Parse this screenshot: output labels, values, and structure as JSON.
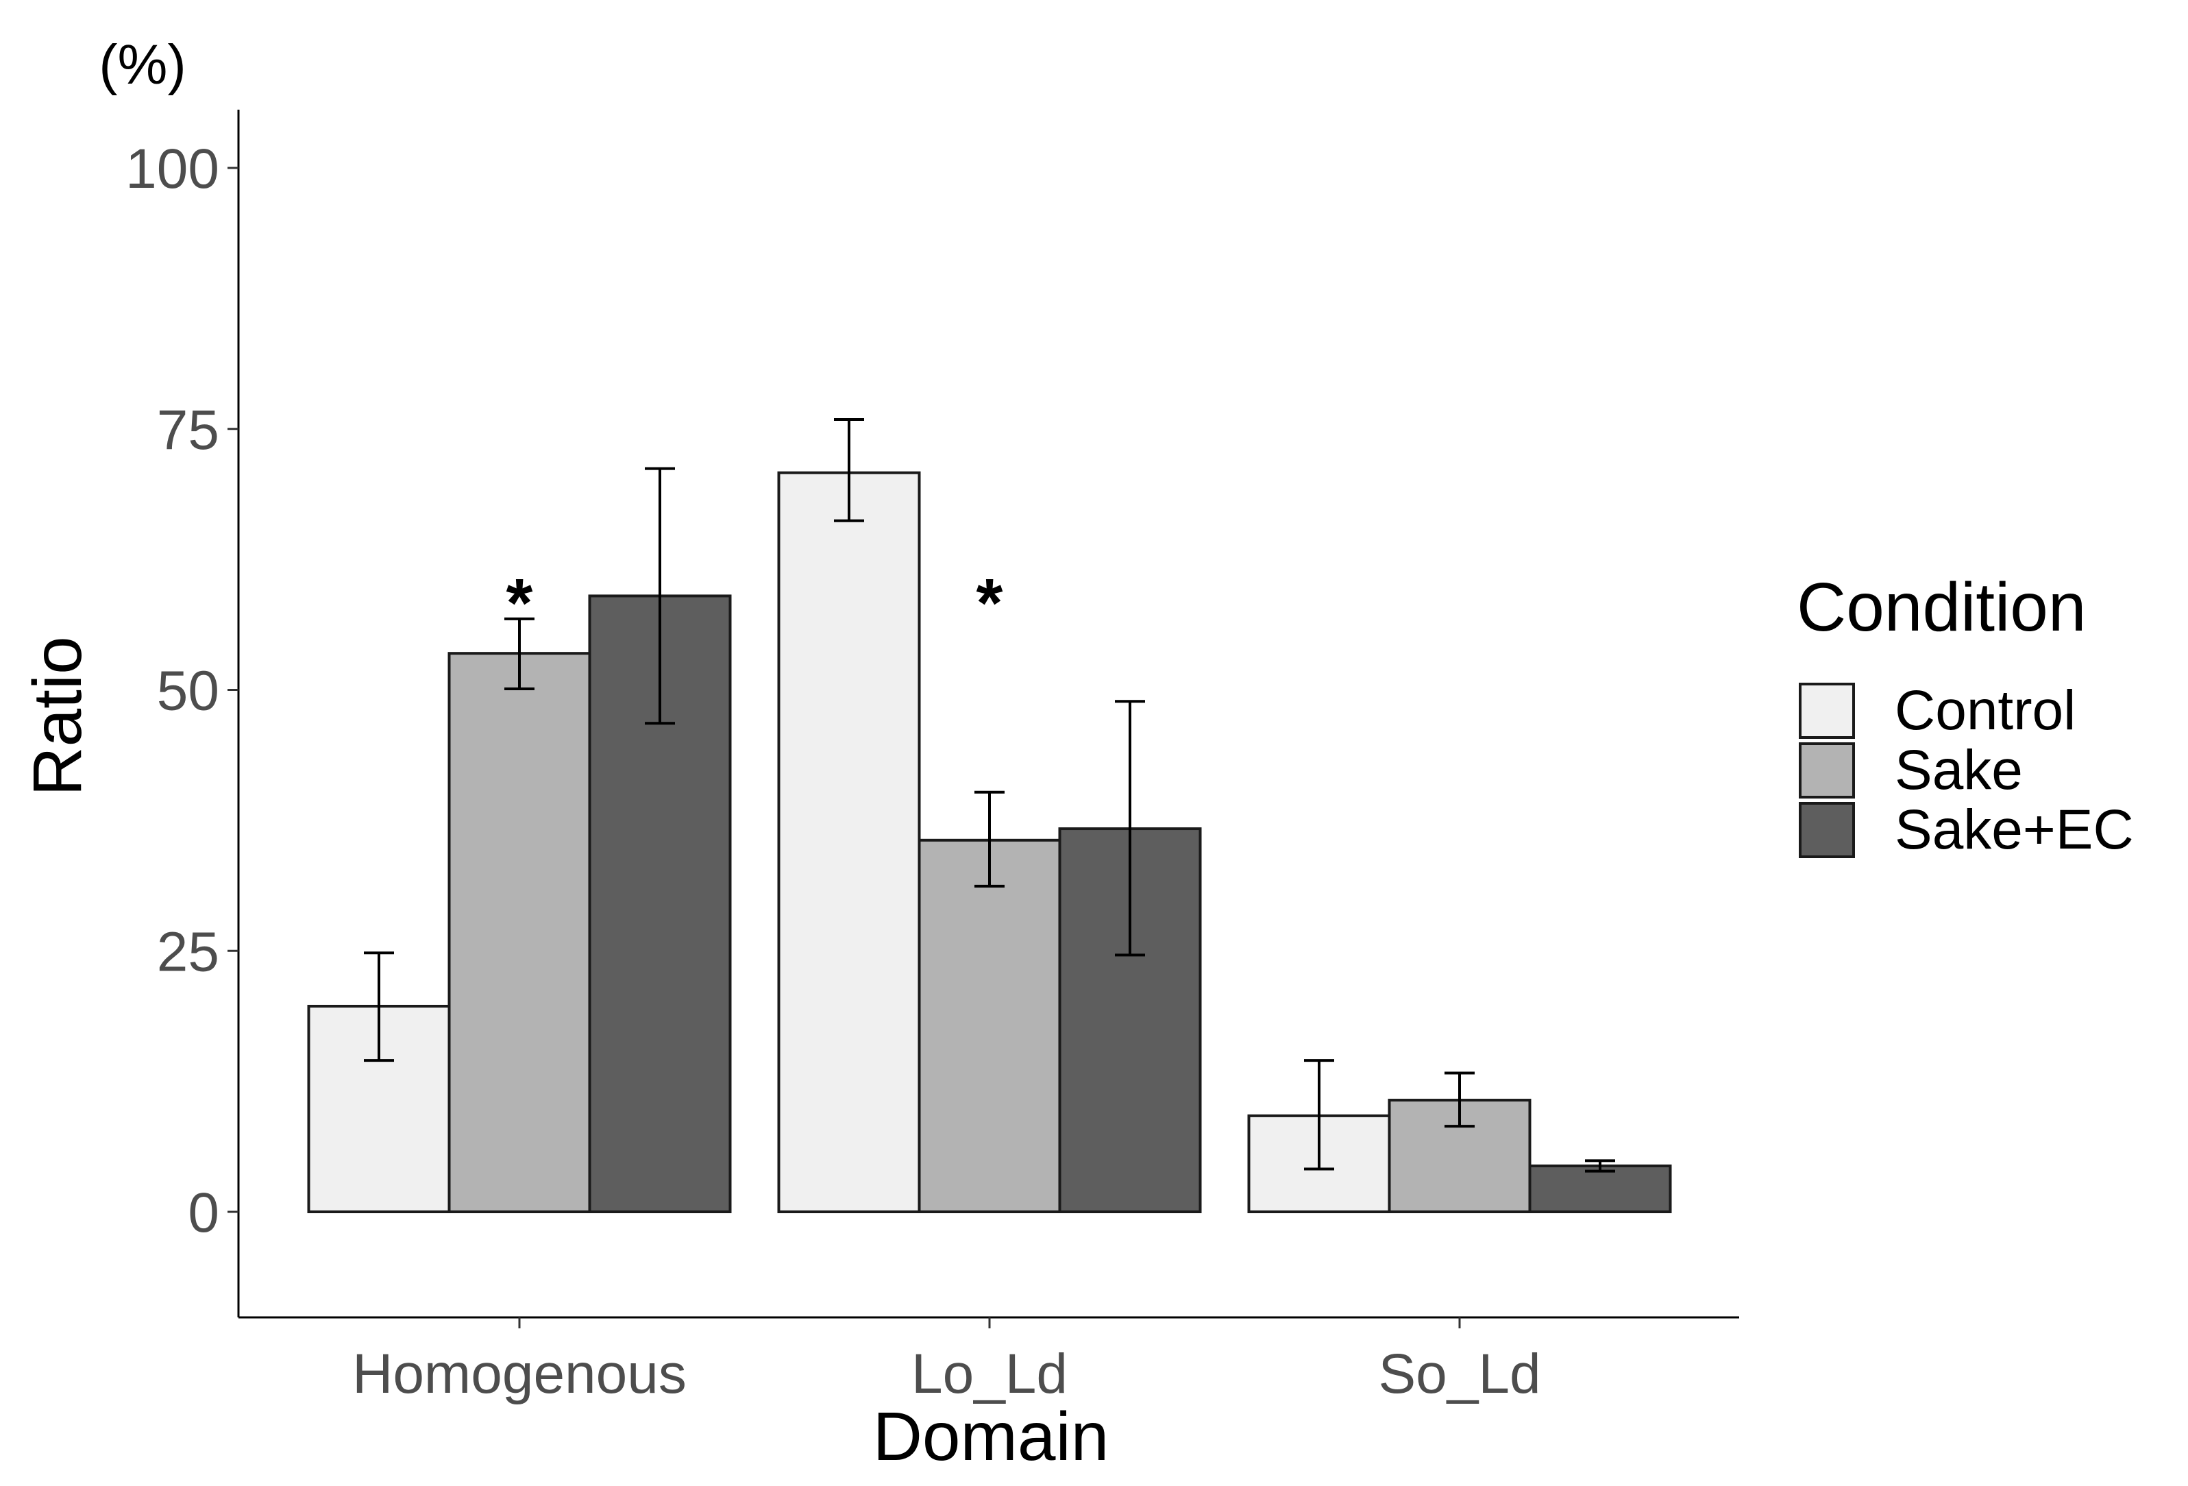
{
  "chart_data": {
    "type": "bar",
    "title": "",
    "unit_label": "(%)",
    "xlabel": "Domain",
    "ylabel": "Ratio",
    "ylim": [
      -10,
      105
    ],
    "yticks": [
      0,
      25,
      50,
      75,
      100
    ],
    "categories": [
      "Homogenous",
      "Lo_Ld",
      "So_Ld"
    ],
    "series": [
      {
        "name": "Control",
        "color": "#f0f0f0",
        "values": [
          19.7,
          70.8,
          9.2
        ],
        "err_low": [
          14.5,
          66.2,
          4.1
        ],
        "err_high": [
          24.8,
          75.9,
          14.5
        ]
      },
      {
        "name": "Sake",
        "color": "#b3b3b3",
        "values": [
          53.5,
          35.6,
          10.7
        ],
        "err_low": [
          50.1,
          31.2,
          8.2
        ],
        "err_high": [
          56.8,
          40.2,
          13.3
        ]
      },
      {
        "name": "Sake+EC",
        "color": "#5e5e5e",
        "values": [
          59.0,
          36.7,
          4.4
        ],
        "err_low": [
          46.8,
          24.6,
          3.9
        ],
        "err_high": [
          71.2,
          48.9,
          4.9
        ]
      }
    ],
    "annotations": [
      {
        "category": "Homogenous",
        "text": "*"
      },
      {
        "category": "Lo_Ld",
        "text": "*"
      }
    ],
    "legend": {
      "title": "Condition",
      "position": "right"
    },
    "grid": false
  }
}
